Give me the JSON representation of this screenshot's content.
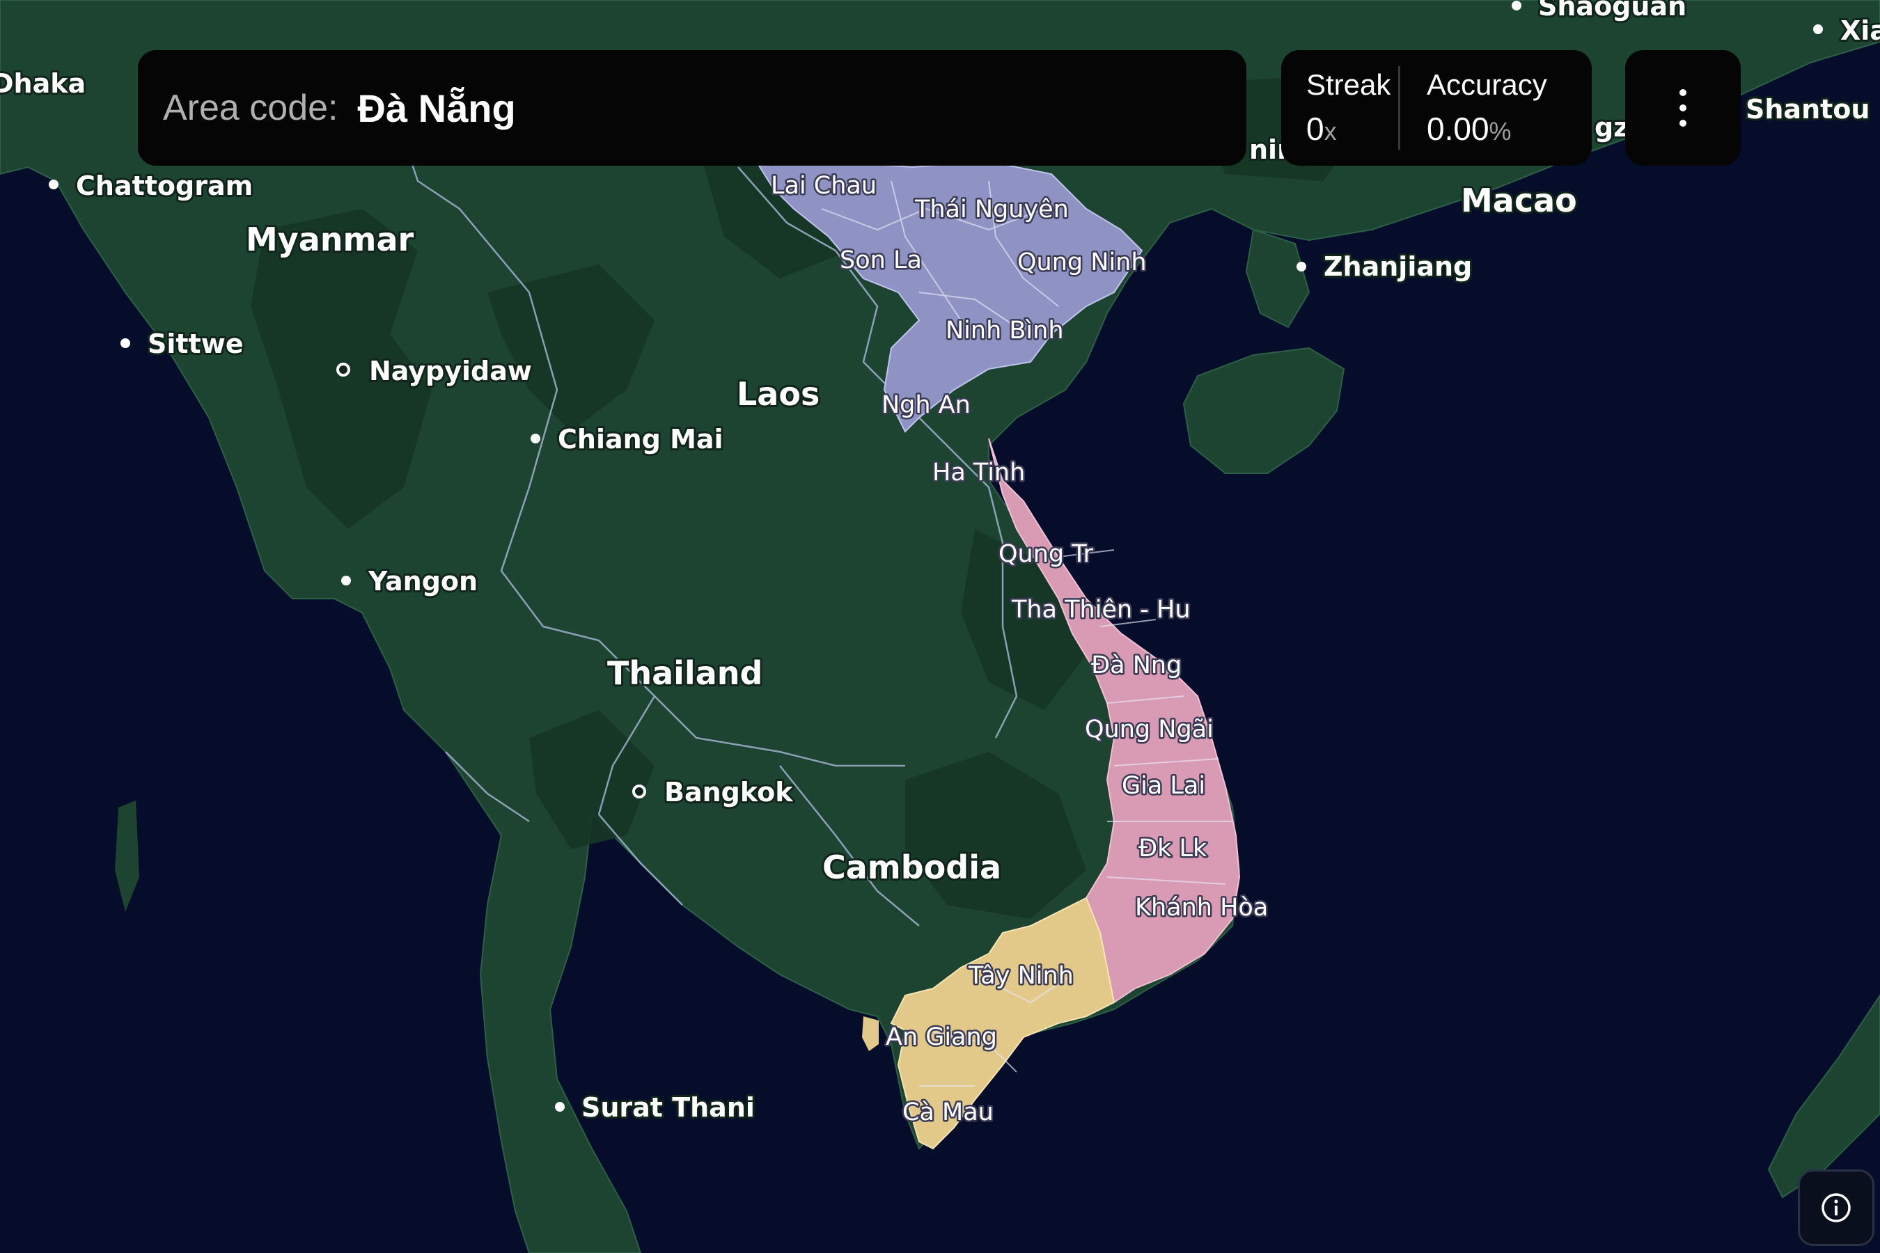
{
  "prompt": {
    "label": "Area code:",
    "value": "Đà Nẵng"
  },
  "stats": {
    "streak_label": "Streak",
    "streak_value": "0",
    "streak_unit": "x",
    "accuracy_label": "Accuracy",
    "accuracy_value": "0.00",
    "accuracy_unit": "%"
  },
  "menu": {
    "icon": "kebab-menu-icon"
  },
  "info": {
    "icon": "info-icon"
  },
  "colors": {
    "ocean": "#050d2a",
    "land": "#1c4430",
    "land_dark": "#163626",
    "region_north": "#8f93c4",
    "region_central": "#d99ab4",
    "region_south": "#e2c98a"
  },
  "map": {
    "countries": {
      "myanmar": "Myanmar",
      "laos": "Laos",
      "thailand": "Thailand",
      "cambodia": "Cambodia"
    },
    "cities": {
      "dhaka": "Dhaka",
      "chattogram": "Chattogram",
      "sittwe": "Sittwe",
      "naypyidaw": "Naypyidaw",
      "chiang_mai": "Chiang Mai",
      "yangon": "Yangon",
      "bangkok": "Bangkok",
      "surat_thani": "Surat Thani",
      "macao": "Macao",
      "zhanjiang": "Zhanjiang",
      "shantou": "Shantou",
      "shaoguan": "Shaoguan",
      "xia": "Xia",
      "partial_ning": "ning",
      "partial_gzh": "gzh"
    },
    "provinces": {
      "lai_chau": "Lai Chau",
      "thai_nguyen": "Thái Nguyên",
      "son_la": "Son La",
      "quang_ninh": "Qung Ninh",
      "ninh_binh": "Ninh Bình",
      "nghe_an": "Ngh An",
      "ha_tinh": "Ha Tinh",
      "quang_tri": "Qung Tr",
      "thua_thien_hue": "Tha Thiên - Hu",
      "da_nang": "Đà Nng",
      "quang_ngai": "Qung Ngãi",
      "gia_lai": "Gia Lai",
      "dak_lak": "Đk Lk",
      "khanh_hoa": "Khánh Hòa",
      "tay_ninh": "Tây Ninh",
      "an_giang": "An Giang",
      "ca_mau": "Cà Mau"
    }
  }
}
